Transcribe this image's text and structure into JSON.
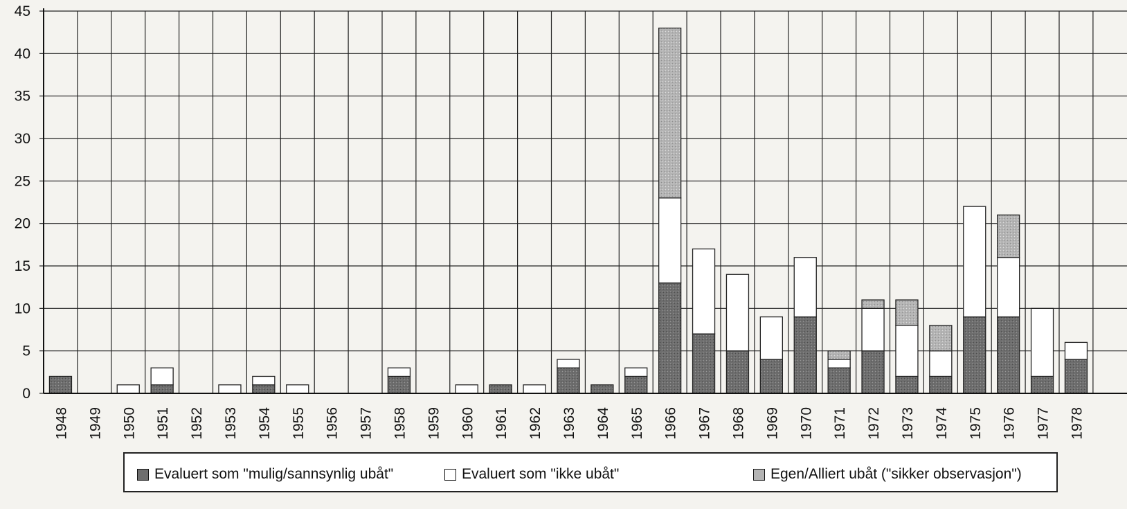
{
  "chart_data": {
    "type": "bar",
    "stacked": true,
    "categories": [
      "1948",
      "1949",
      "1950",
      "1951",
      "1952",
      "1953",
      "1954",
      "1955",
      "1956",
      "1957",
      "1958",
      "1959",
      "1960",
      "1961",
      "1962",
      "1963",
      "1964",
      "1965",
      "1966",
      "1967",
      "1968",
      "1969",
      "1970",
      "1971",
      "1972",
      "1973",
      "1974",
      "1975",
      "1976",
      "1977",
      "1978"
    ],
    "series": [
      {
        "name": "Evaluert som \"mulig/sannsynlig ubåt\"",
        "color": "#6e6e6e",
        "values": [
          2,
          0,
          0,
          1,
          0,
          0,
          1,
          0,
          0,
          0,
          2,
          0,
          0,
          1,
          0,
          3,
          1,
          2,
          13,
          7,
          5,
          4,
          9,
          3,
          5,
          2,
          2,
          9,
          9,
          2,
          4
        ]
      },
      {
        "name": "Evaluert som \"ikke ubåt\"",
        "color": "#ffffff",
        "values": [
          0,
          0,
          1,
          2,
          0,
          1,
          1,
          1,
          0,
          0,
          1,
          0,
          1,
          0,
          1,
          1,
          0,
          1,
          10,
          10,
          9,
          5,
          7,
          1,
          5,
          6,
          3,
          13,
          7,
          8,
          2
        ]
      },
      {
        "name": "Egen/Alliert ubåt (\"sikker observasjon\")",
        "color": "#b4b4b4",
        "values": [
          0,
          0,
          0,
          0,
          0,
          0,
          0,
          0,
          0,
          0,
          0,
          0,
          0,
          0,
          0,
          0,
          0,
          0,
          20,
          0,
          0,
          0,
          0,
          1,
          1,
          3,
          3,
          0,
          5,
          0,
          0
        ]
      }
    ],
    "title": "",
    "xlabel": "",
    "ylabel": "",
    "ylim": [
      0,
      45
    ],
    "yticks": [
      "0",
      "5",
      "10",
      "15",
      "20",
      "25",
      "30",
      "35",
      "40",
      "45"
    ],
    "grid": true,
    "legend": "bottom"
  }
}
